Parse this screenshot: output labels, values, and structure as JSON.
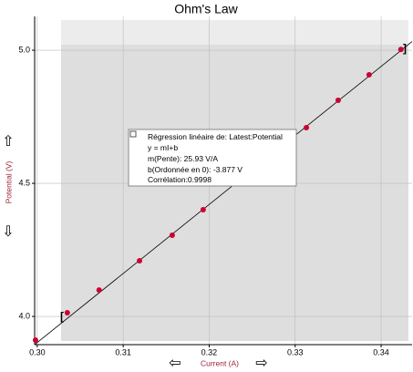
{
  "chart_data": {
    "type": "scatter",
    "title": "Ohm's Law",
    "x_label": "Current (A)",
    "y_label": "Potential (V)",
    "x": [
      0.2998,
      0.3035,
      0.3072,
      0.3119,
      0.3157,
      0.3193,
      0.3313,
      0.335,
      0.3386,
      0.3423
    ],
    "series": [
      {
        "name": "Latest:Potential",
        "color": "#cc0033",
        "values": [
          3.911,
          4.014,
          4.099,
          4.209,
          4.305,
          4.401,
          4.709,
          4.812,
          4.908,
          5.003
        ]
      }
    ],
    "fit": {
      "slope": 25.93,
      "intercept": -3.877
    },
    "fit_box": [
      "Régression linéaire de:  Latest:Potential",
      "y = mI+b",
      "m(Pente): 25.93 V/A",
      "b(Ordonnée en 0): -3.877 V",
      "Corrélation:0.9998"
    ],
    "xlim": [
      0.2997,
      0.3436
    ],
    "ylim": [
      3.894,
      5.127
    ],
    "xticks": [
      {
        "value": 0.3,
        "label": "0.30"
      },
      0.31,
      0.32,
      0.33,
      0.34
    ],
    "yticks": [
      {
        "value": 4.0,
        "label": "4.0"
      },
      4.5,
      {
        "value": 5.0,
        "label": "5.0"
      }
    ],
    "grid": true
  }
}
